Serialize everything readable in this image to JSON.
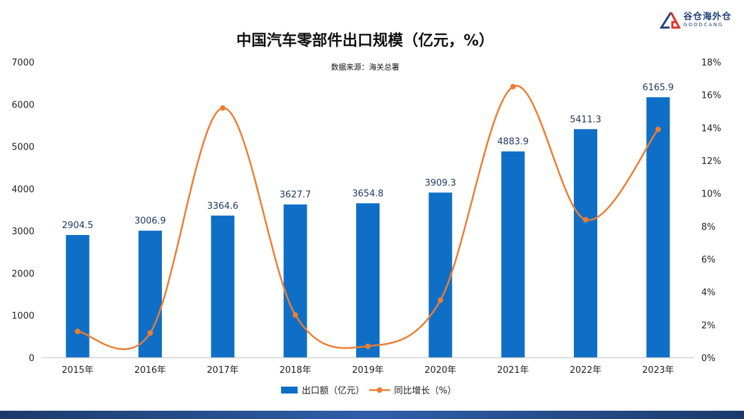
{
  "brand": {
    "name_cn": "谷仓海外仓",
    "name_en": "GOODCANG",
    "logo_icon": "gc-logo-icon",
    "colors": {
      "navy": "#1f3f7a",
      "red": "#d9342b"
    }
  },
  "chart_data": {
    "type": "bar",
    "title": "中国汽车零部件出口规模（亿元，%）",
    "subtitle": "数据来源：海关总署",
    "categories": [
      "2015年",
      "2016年",
      "2017年",
      "2018年",
      "2019年",
      "2020年",
      "2021年",
      "2022年",
      "2023年"
    ],
    "series": [
      {
        "name": "出口额（亿元）",
        "type": "bar",
        "axis": "left",
        "color": "#0f6fc6",
        "values": [
          2904.5,
          3006.9,
          3364.6,
          3627.7,
          3654.8,
          3909.3,
          4883.9,
          5411.3,
          6165.9
        ],
        "labels": [
          "2904.5",
          "3006.9",
          "3364.6",
          "3627.7",
          "3654.8",
          "3909.3",
          "4883.9",
          "5411.3",
          "6165.9"
        ]
      },
      {
        "name": "同比增长（%）",
        "type": "line",
        "axis": "right",
        "color": "#ed7d31",
        "values": [
          1.6,
          1.5,
          15.2,
          2.6,
          0.7,
          3.5,
          16.5,
          8.4,
          13.9
        ]
      }
    ],
    "y_left": {
      "min": 0,
      "max": 7000,
      "ticks": [
        "0",
        "1000",
        "2000",
        "3000",
        "4000",
        "5000",
        "6000",
        "7000"
      ]
    },
    "y_right": {
      "min": 0,
      "max": 18,
      "ticks": [
        "0%",
        "2%",
        "4%",
        "6%",
        "8%",
        "10%",
        "12%",
        "14%",
        "16%",
        "18%"
      ]
    },
    "grid": false,
    "legend_position": "bottom"
  }
}
